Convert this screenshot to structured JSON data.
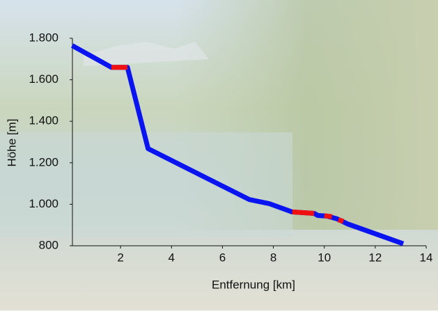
{
  "chart_data": {
    "type": "line",
    "xlabel": "Entfernung [km]",
    "ylabel": "Höhe [m]",
    "xlim": [
      0,
      14
    ],
    "xticks": [
      2,
      4,
      6,
      8,
      10,
      12,
      14
    ],
    "ylim": [
      800,
      1800
    ],
    "yticks": [
      800,
      {
        "value": 1000,
        "label": "1.000"
      },
      {
        "value": 1200,
        "label": "1.200"
      },
      {
        "value": 1400,
        "label": "1.400"
      },
      {
        "value": 1600,
        "label": "1.600"
      },
      {
        "value": 1800,
        "label": "1.800"
      }
    ],
    "series": [
      {
        "color": "#0a14f0",
        "x": [
          0.1,
          1.64,
          2.27,
          3.08,
          7.05,
          7.84,
          8.74,
          9.6,
          9.75,
          10.1,
          10.5,
          10.9,
          13.1
        ],
        "values": [
          1765,
          1660,
          1660,
          1268,
          1023,
          1003,
          963,
          956,
          946,
          943,
          930,
          906,
          810
        ]
      },
      {
        "color": "#f01010",
        "x": [
          1.64,
          2.27,
          2.3,
          8.74,
          9.6,
          9.7,
          10.0,
          10.3,
          10.4,
          10.55,
          10.75
        ],
        "values": [
          1660,
          1660,
          null,
          963,
          956,
          null,
          945,
          940,
          null,
          925,
          918
        ]
      }
    ]
  }
}
